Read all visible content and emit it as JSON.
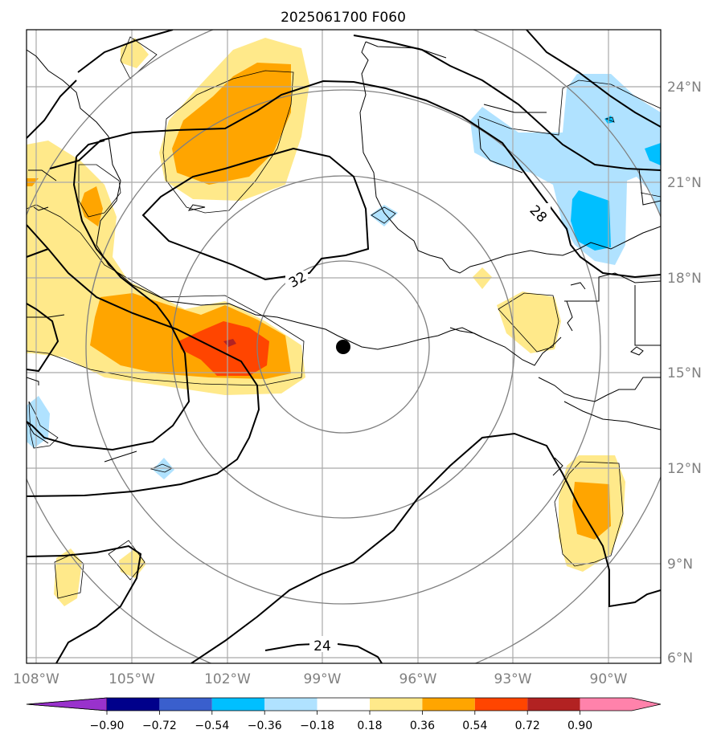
{
  "title": "2025061700 F060",
  "lon_labels": [
    "108°W",
    "105°W",
    "102°W",
    "99°W",
    "96°W",
    "93°W",
    "90°W"
  ],
  "lat_labels": [
    "24°N",
    "21°N",
    "18°N",
    "15°N",
    "12°N",
    "9°N",
    "6°N"
  ],
  "contour_labels": [
    "32",
    "28",
    "24"
  ],
  "colorbar": {
    "tick_labels": [
      "−0.90",
      "−0.72",
      "−0.54",
      "−0.36",
      "−0.18",
      "0.18",
      "0.36",
      "0.54",
      "0.72",
      "0.90"
    ],
    "colors": [
      "#9932cc",
      "#00008b",
      "#3a5fcd",
      "#00bfff",
      "#b0e2ff",
      "#ffffff",
      "#ffe98a",
      "#ffa500",
      "#ff4500",
      "#b22222",
      "#ff82ab"
    ]
  },
  "storm_center": {
    "lon": -98.4,
    "lat": 15.8
  },
  "fill_colors": {
    "light_yellow": "#ffe98a",
    "orange": "#ffa500",
    "orange_red": "#ff4500",
    "dark_red": "#b22222",
    "light_blue": "#b0e2ff",
    "blue": "#00bfff"
  }
}
